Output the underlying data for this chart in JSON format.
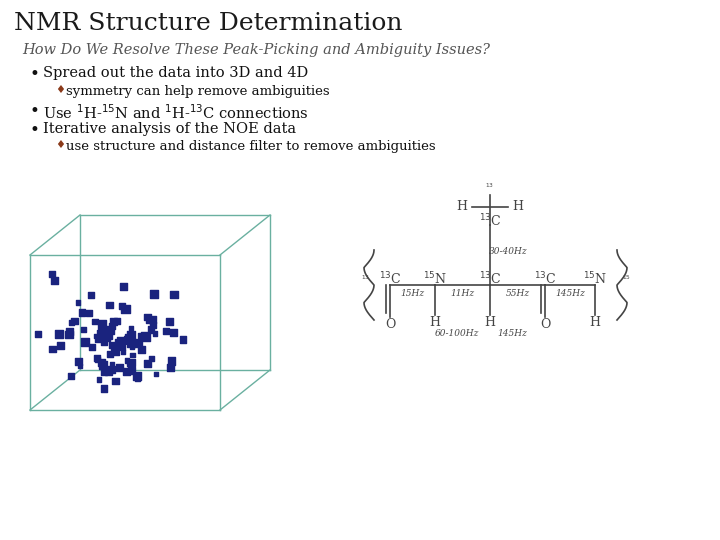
{
  "title": "NMR Structure Determination",
  "subtitle": "How Do We Resolve These Peak-Picking and Ambiguity Issues?",
  "bullet1": "Spread out the data into 3D and 4D",
  "sub_bullet1": "symmetry can help remove ambiguities",
  "bullet2_text": "Use $^{1}$H-$^{15}$N and $^{1}$H-$^{13}$C connections",
  "bullet3": "Iterative analysis of the NOE data",
  "sub_bullet2": "use structure and distance filter to remove ambiguities",
  "bg_color": "#ffffff",
  "title_color": "#1a1a1a",
  "subtitle_color": "#555555",
  "bullet_color": "#111111",
  "sub_bullet_color": "#8B3A1A",
  "box_color": "#6ab0a0",
  "dot_color": "#1a237e",
  "chem_color": "#444444"
}
